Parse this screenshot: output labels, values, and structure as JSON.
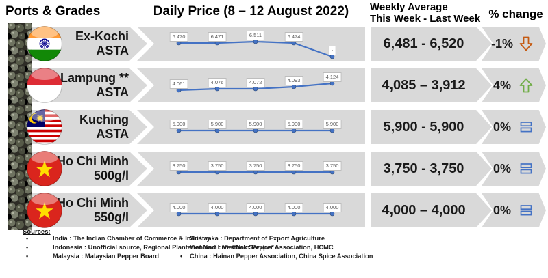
{
  "header": {
    "ports_grades": "Ports & Grades",
    "daily_price": "Daily Price (8 – 12 August 2022)",
    "weekly_avg_line1": "Weekly Average",
    "weekly_avg_line2": "This Week - Last Week",
    "pct_change": "% change"
  },
  "rows": [
    {
      "port": "Ex-Kochi",
      "grade": "ASTA",
      "flag": "india",
      "daily_labels": [
        "6.470",
        "6.471",
        "6.511",
        "6.474",
        "-"
      ],
      "daily_values": [
        6470,
        6471,
        6511,
        6474,
        null
      ],
      "point_y": [
        24,
        24,
        22,
        24,
        44
      ],
      "weekly_average": "6,481 - 6,520",
      "pct_change": "-1%",
      "trend": "down"
    },
    {
      "port": "Lampung **",
      "grade": "ASTA",
      "flag": "indonesia",
      "daily_labels": [
        "4.061",
        "4.076",
        "4.072",
        "4.093",
        "4.124"
      ],
      "daily_values": [
        4061,
        4076,
        4072,
        4093,
        4124
      ],
      "point_y": [
        32,
        30,
        30,
        27,
        22
      ],
      "weekly_average": "4,085 – 3,912",
      "pct_change": "4%",
      "trend": "up"
    },
    {
      "port": "Kuching",
      "grade": "ASTA",
      "flag": "malaysia",
      "daily_labels": [
        "5.900",
        "5.900",
        "5.900",
        "5.900",
        "5.900"
      ],
      "daily_values": [
        5900,
        5900,
        5900,
        5900,
        5900
      ],
      "point_y": [
        30,
        30,
        30,
        30,
        30
      ],
      "weekly_average": "5,900 - 5,900",
      "pct_change": "0%",
      "trend": "equal"
    },
    {
      "port": "Ho Chi Minh",
      "grade": "500g/l",
      "flag": "vietnam",
      "daily_labels": [
        "3.750",
        "3.750",
        "3.750",
        "3.750",
        "3.750"
      ],
      "daily_values": [
        3750,
        3750,
        3750,
        3750,
        3750
      ],
      "point_y": [
        30,
        30,
        30,
        30,
        30
      ],
      "weekly_average": "3,750 - 3,750",
      "pct_change": "0%",
      "trend": "equal"
    },
    {
      "port": "Ho Chi Minh",
      "grade": "550g/l",
      "flag": "vietnam",
      "daily_labels": [
        "4.000",
        "4.000",
        "4.000",
        "4.000",
        "4.000"
      ],
      "daily_values": [
        4000,
        4000,
        4000,
        4000,
        4000
      ],
      "point_y": [
        30,
        30,
        30,
        30,
        30
      ],
      "weekly_average": "4,000 – 4,000",
      "pct_change": "0%",
      "trend": "equal"
    }
  ],
  "sources": {
    "title": "Sources:",
    "left": [
      {
        "bullet": "•",
        "text": "India : The Indian Chamber of Commerce & Industry"
      },
      {
        "bullet": "•",
        "text": "Indonesia : Unofficial source, Regional Plantation and Livestock Service*"
      },
      {
        "bullet": "•",
        "text": "Malaysia : Malaysian Pepper Board"
      }
    ],
    "right": [
      {
        "bullet": "•",
        "text": "Sri Lanka : Department of Export Agriculture"
      },
      {
        "bullet": "",
        "text": "Viet Nam : Viet Nam Pepper Association, HCMC"
      },
      {
        "bullet": "•",
        "text": "China : Hainan Pepper Association, China Spice Association"
      }
    ]
  },
  "colors": {
    "band": "#d9d9d9",
    "spark_line": "#4472c4",
    "trend_down": "#c55a11",
    "trend_up": "#70ad47",
    "trend_equal": "#4472c4",
    "label_border": "#bdbdbd",
    "label_text": "#595959"
  },
  "chart_data": [
    {
      "type": "line",
      "title": "Ex-Kochi ASTA daily price",
      "date_range": "8 – 12 August 2022",
      "x": [
        1,
        2,
        3,
        4,
        5
      ],
      "values": [
        6470,
        6471,
        6511,
        6474,
        null
      ],
      "point_labels": [
        "6.470",
        "6.471",
        "6.511",
        "6.474",
        "-"
      ],
      "weekly_average_this_week": 6481,
      "weekly_average_last_week": 6520,
      "pct_change": -1
    },
    {
      "type": "line",
      "title": "Lampung ** ASTA daily price",
      "date_range": "8 – 12 August 2022",
      "x": [
        1,
        2,
        3,
        4,
        5
      ],
      "values": [
        4061,
        4076,
        4072,
        4093,
        4124
      ],
      "point_labels": [
        "4.061",
        "4.076",
        "4.072",
        "4.093",
        "4.124"
      ],
      "weekly_average_this_week": 4085,
      "weekly_average_last_week": 3912,
      "pct_change": 4
    },
    {
      "type": "line",
      "title": "Kuching ASTA daily price",
      "date_range": "8 – 12 August 2022",
      "x": [
        1,
        2,
        3,
        4,
        5
      ],
      "values": [
        5900,
        5900,
        5900,
        5900,
        5900
      ],
      "point_labels": [
        "5.900",
        "5.900",
        "5.900",
        "5.900",
        "5.900"
      ],
      "weekly_average_this_week": 5900,
      "weekly_average_last_week": 5900,
      "pct_change": 0
    },
    {
      "type": "line",
      "title": "Ho Chi Minh 500g/l daily price",
      "date_range": "8 – 12 August 2022",
      "x": [
        1,
        2,
        3,
        4,
        5
      ],
      "values": [
        3750,
        3750,
        3750,
        3750,
        3750
      ],
      "point_labels": [
        "3.750",
        "3.750",
        "3.750",
        "3.750",
        "3.750"
      ],
      "weekly_average_this_week": 3750,
      "weekly_average_last_week": 3750,
      "pct_change": 0
    },
    {
      "type": "line",
      "title": "Ho Chi Minh 550g/l daily price",
      "date_range": "8 – 12 August 2022",
      "x": [
        1,
        2,
        3,
        4,
        5
      ],
      "values": [
        4000,
        4000,
        4000,
        4000,
        4000
      ],
      "point_labels": [
        "4.000",
        "4.000",
        "4.000",
        "4.000",
        "4.000"
      ],
      "weekly_average_this_week": 4000,
      "weekly_average_last_week": 4000,
      "pct_change": 0
    }
  ]
}
